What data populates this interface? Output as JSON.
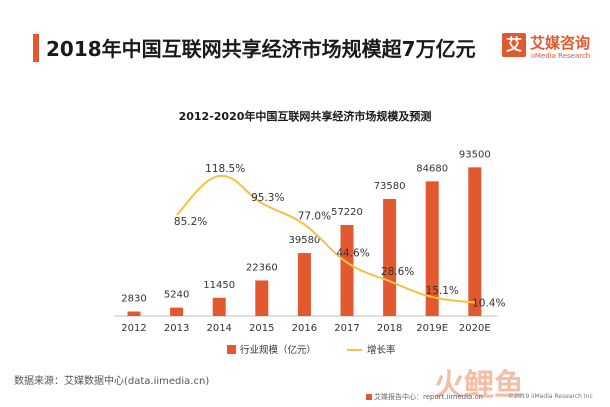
{
  "header": {
    "title": "2018年中国互联网共享经济市场规模超7万亿元",
    "brand_mark": "艾",
    "brand_name": "艾媒咨询",
    "brand_sub": "iiMedia Research"
  },
  "chart_data": {
    "type": "bar",
    "title": "2012-2020年中国互联网共享经济市场规模及预测",
    "categories": [
      "2012",
      "2013",
      "2014",
      "2015",
      "2016",
      "2017",
      "2018",
      "2019E",
      "2020E"
    ],
    "series": [
      {
        "name": "行业规模（亿元）",
        "type": "bar",
        "values": [
          2830,
          5240,
          11450,
          22360,
          39580,
          57220,
          73580,
          84680,
          93500
        ],
        "labels": [
          "2830",
          "5240",
          "11450",
          "22360",
          "39580",
          "57220",
          "73580",
          "84680",
          "93500"
        ],
        "color": "#e2582f"
      },
      {
        "name": "增长率",
        "type": "line",
        "values": [
          null,
          85.2,
          118.5,
          95.3,
          77.0,
          44.6,
          28.6,
          15.1,
          10.4
        ],
        "labels": [
          null,
          "85.2%",
          "118.5%",
          "95.3%",
          "77.0%",
          "44.6%",
          "28.6%",
          "15.1%",
          "10.4%"
        ],
        "color": "#f5c242"
      }
    ],
    "ylim": [
      0,
      100000
    ],
    "grid": false,
    "legend_position": "bottom"
  },
  "footer": {
    "source": "数据来源：艾媒数据中心(data.iimedia.cn)",
    "watermark": "火鲤鱼",
    "report_site": "艾媒报告中心：report.iimedia.cn",
    "copyright": "©2019  iiMedia Research  Inc"
  }
}
